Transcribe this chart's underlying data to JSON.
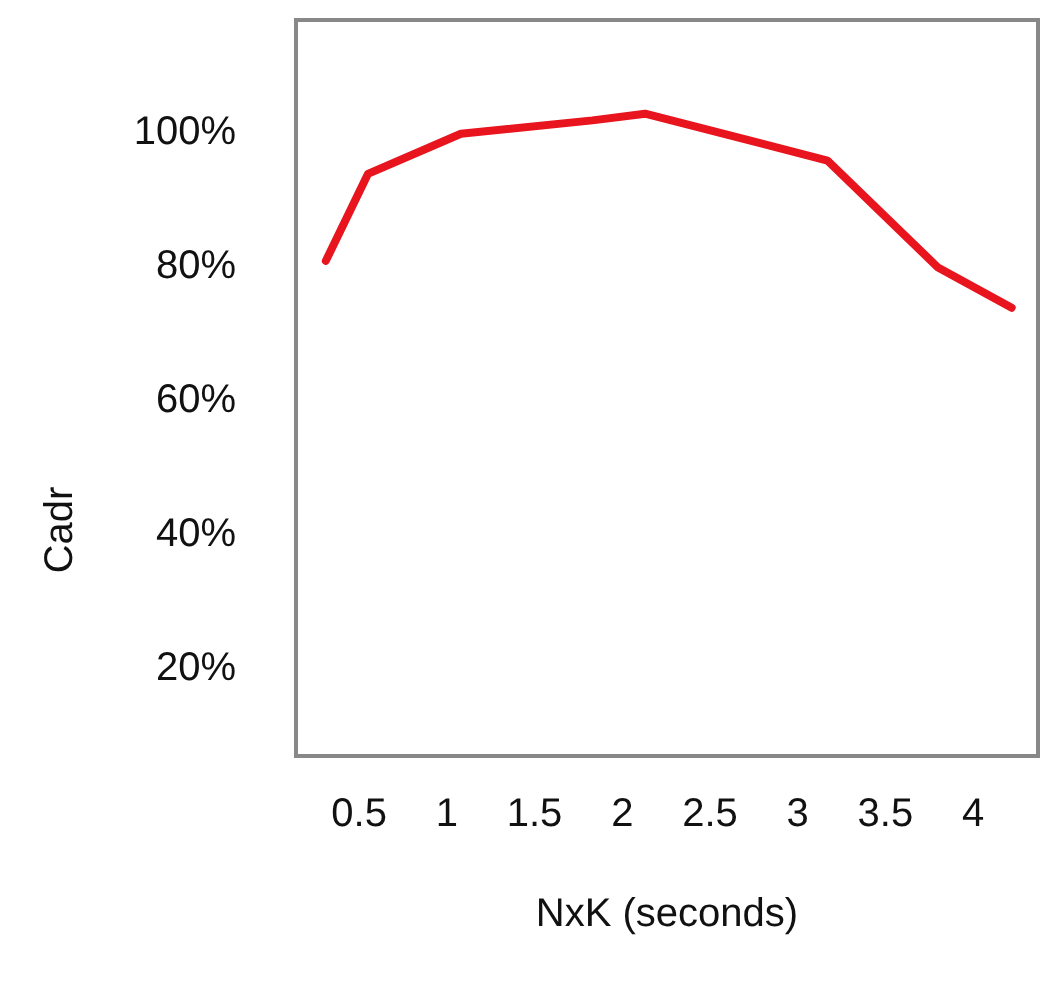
{
  "chart_data": {
    "type": "line",
    "xlabel": "NxK (seconds)",
    "ylabel": "Cadr",
    "x": [
      0.31,
      0.55,
      1.08,
      1.83,
      2.13,
      3.17,
      3.8,
      4.22
    ],
    "series": [
      {
        "color": "#e8141e",
        "values": [
          81,
          94,
          100,
          102,
          103,
          96,
          80,
          74
        ]
      }
    ],
    "xlim": [
      0.14,
      4.37
    ],
    "xticks": [
      0.5,
      1,
      1.5,
      2,
      2.5,
      3,
      3.5,
      4
    ],
    "ylim": [
      7,
      117
    ],
    "yticks": [
      {
        "value": 20,
        "label": "20%"
      },
      {
        "value": 40,
        "label": "40%"
      },
      {
        "value": 60,
        "label": "60%"
      },
      {
        "value": 80,
        "label": "80%"
      },
      {
        "value": 100,
        "label": "100%"
      }
    ],
    "marker": "none",
    "line_style": "solid"
  }
}
